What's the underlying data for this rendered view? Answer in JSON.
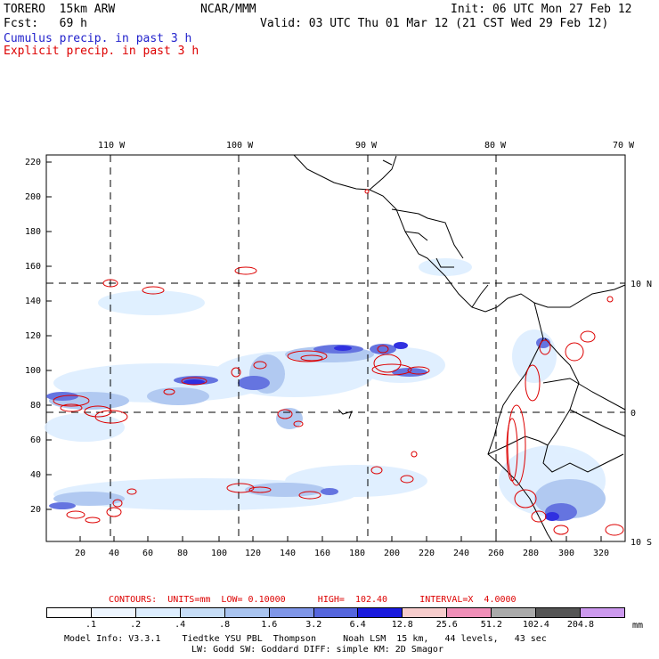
{
  "header": {
    "model": "TORERO  15km ARW",
    "source": "NCAR/MMM",
    "init": "Init: 06 UTC Mon 27 Feb 12",
    "fcst": "Fcst:   69 h",
    "valid": "Valid: 03 UTC Thu 01 Mar 12 (21 CST Wed 29 Feb 12)",
    "field1": "Cumulus precip. in past 3 h",
    "field2": "Explicit precip. in past 3 h",
    "field1_color": "#2222cc",
    "field2_color": "#dd0000"
  },
  "map": {
    "longitude_labels": [
      "110 W",
      "100 W",
      "90 W",
      "80 W",
      "70 W"
    ],
    "latitude_labels": [
      "10 N",
      "0",
      "10 S"
    ],
    "y_ticks": [
      "220",
      "200",
      "180",
      "160",
      "140",
      "120",
      "100",
      "80",
      "60",
      "40",
      "20"
    ],
    "x_ticks": [
      "20",
      "40",
      "60",
      "80",
      "100",
      "120",
      "140",
      "160",
      "180",
      "200",
      "220",
      "240",
      "260",
      "280",
      "300",
      "320"
    ]
  },
  "contour_info": {
    "text": "CONTOURS:  UNITS=mm  LOW= 0.10000      HIGH=  102.40      INTERVAL=X  4.0000",
    "color": "#dd0000"
  },
  "legend": {
    "labels": [
      ".1",
      ".2",
      ".4",
      ".8",
      "1.6",
      "3.2",
      "6.4",
      "12.8",
      "25.6",
      "51.2",
      "102.4",
      "204.8"
    ],
    "unit": "mm",
    "colors": [
      "#ffffff",
      "#eef6ff",
      "#ddeeff",
      "#c6ddf7",
      "#a9c4f0",
      "#7f96e8",
      "#5566dd",
      "#1a1add",
      "#f7cccc",
      "#f08fb8",
      "#aaaaaa",
      "#555555",
      "#cc99ee"
    ]
  },
  "footer": {
    "line1": "Model Info: V3.3.1    Tiedtke YSU PBL  Thompson     Noah LSM  15 km,   44 levels,   43 sec",
    "line2": "LW: Godd SW: Goddard DIFF: simple KM: 2D Smagor"
  }
}
